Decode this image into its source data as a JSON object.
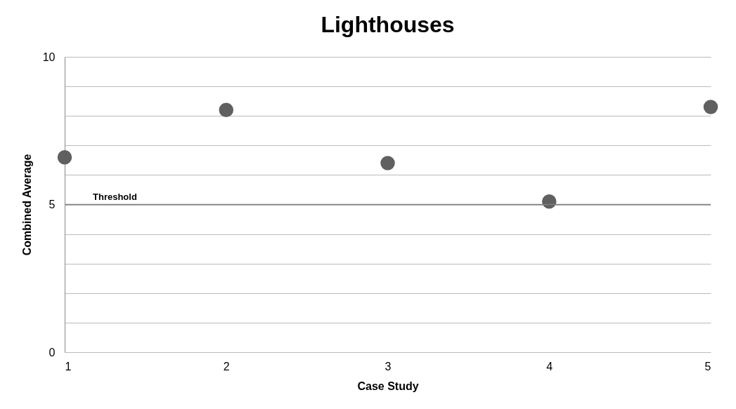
{
  "chart_data": {
    "type": "scatter",
    "title": "Lighthouses",
    "xlabel": "Case Study",
    "ylabel": "Combined Average",
    "x": [
      1,
      2,
      3,
      4,
      5
    ],
    "series": [
      {
        "color": "#606060",
        "values": [
          6.6,
          8.2,
          6.4,
          5.1,
          8.3
        ]
      }
    ],
    "xlim": [
      1,
      5
    ],
    "xticks": [
      1,
      2,
      3,
      4,
      5
    ],
    "ylim": [
      0,
      10
    ],
    "yticks": [
      0,
      {
        "value": 1,
        "label": null
      },
      {
        "value": 2,
        "label": null
      },
      {
        "value": 3,
        "label": null
      },
      {
        "value": 4,
        "label": null
      },
      5,
      {
        "value": 6,
        "label": null
      },
      {
        "value": 7,
        "label": null
      },
      {
        "value": 8,
        "label": null
      },
      {
        "value": 9,
        "label": null
      },
      10
    ],
    "ref_lines": [
      {
        "axis": "y",
        "value": 5,
        "label": "Threshold",
        "color": "#808080"
      }
    ],
    "grid": "y",
    "marker": "circle",
    "legend": false
  }
}
